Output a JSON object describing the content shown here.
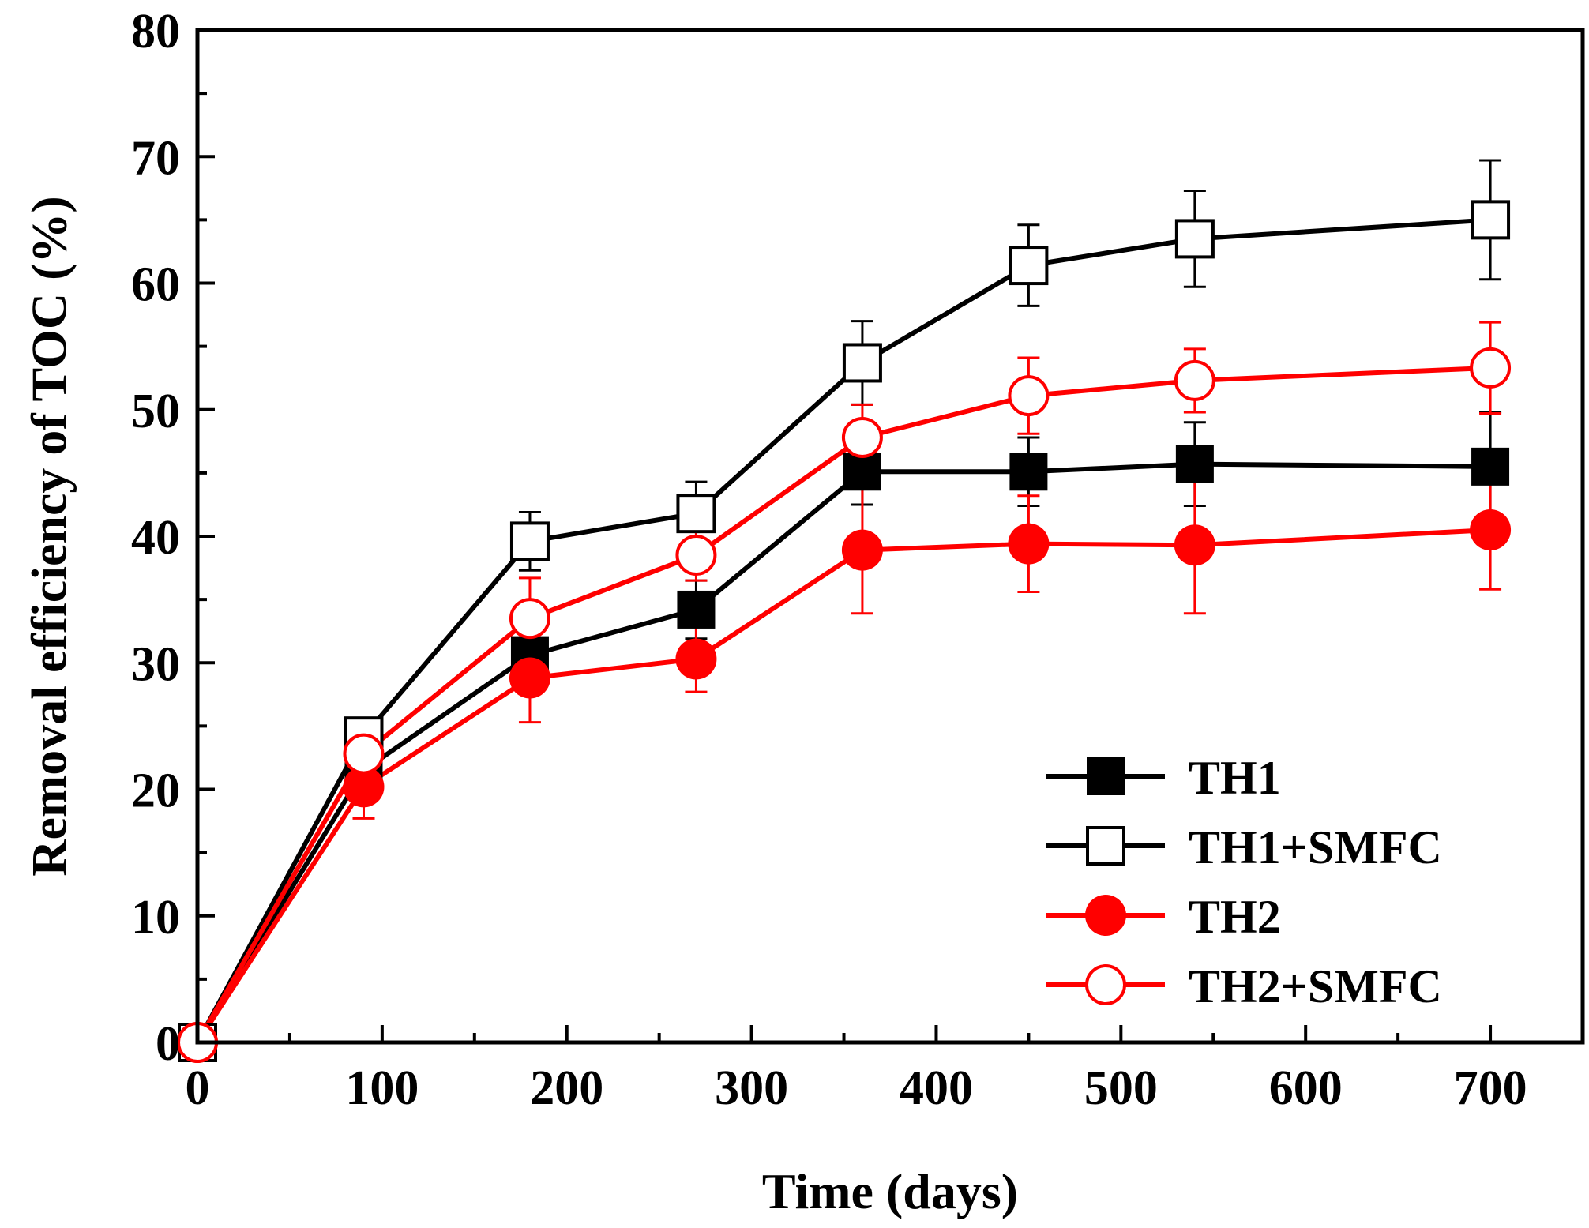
{
  "chart_data": {
    "type": "line",
    "title": "",
    "xlabel": "Time (days)",
    "ylabel": "Removal efficiency of TOC (%)",
    "xlim": [
      0,
      750
    ],
    "ylim": [
      0,
      80
    ],
    "x_ticks": [
      0,
      100,
      200,
      300,
      400,
      500,
      600,
      700
    ],
    "y_ticks": [
      0,
      10,
      20,
      30,
      40,
      50,
      60,
      70,
      80
    ],
    "grid": false,
    "legend_position": "bottom-right",
    "series": [
      {
        "name": "TH1",
        "color": "#000000",
        "marker": "filled-square",
        "x": [
          0,
          90,
          180,
          270,
          360,
          450,
          540,
          700
        ],
        "y": [
          0,
          21.5,
          30.6,
          34.2,
          45.1,
          45.1,
          45.7,
          45.5
        ],
        "err": [
          0,
          1.5,
          1.8,
          2.3,
          2.6,
          2.7,
          3.3,
          4.3
        ]
      },
      {
        "name": "TH1+SMFC",
        "color": "#000000",
        "marker": "open-square",
        "x": [
          0,
          90,
          180,
          270,
          360,
          450,
          540,
          700
        ],
        "y": [
          0,
          24.2,
          39.6,
          41.8,
          53.7,
          61.4,
          63.5,
          65.0
        ],
        "err": [
          0,
          1.2,
          2.3,
          2.5,
          3.3,
          3.2,
          3.8,
          4.7
        ]
      },
      {
        "name": "TH2",
        "color": "#ff0000",
        "marker": "filled-circle",
        "x": [
          0,
          90,
          180,
          270,
          360,
          450,
          540,
          700
        ],
        "y": [
          0,
          20.2,
          28.8,
          30.3,
          38.9,
          39.4,
          39.3,
          40.5
        ],
        "err": [
          0,
          2.5,
          3.5,
          2.6,
          5.0,
          3.8,
          5.4,
          4.7
        ]
      },
      {
        "name": "TH2+SMFC",
        "color": "#ff0000",
        "marker": "open-circle",
        "x": [
          0,
          90,
          180,
          270,
          360,
          450,
          540,
          700
        ],
        "y": [
          0,
          22.8,
          33.5,
          38.5,
          47.8,
          51.1,
          52.3,
          53.3
        ],
        "err": [
          0,
          2.5,
          3.2,
          2.0,
          2.6,
          3.0,
          2.5,
          3.6
        ]
      }
    ]
  }
}
